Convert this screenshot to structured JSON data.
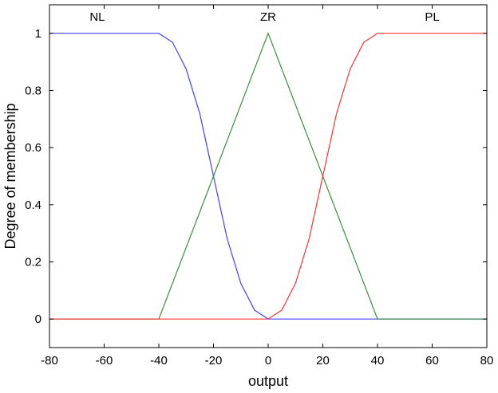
{
  "chart_data": {
    "type": "line",
    "title": "",
    "xlabel": "output",
    "ylabel": "Degree of membership",
    "xlim": [
      -80,
      80
    ],
    "ylim": [
      -0.1,
      1.1
    ],
    "x_ticks": [
      -80,
      -60,
      -40,
      -20,
      0,
      20,
      40,
      60,
      80
    ],
    "x_tick_labels": [
      "-80",
      "-60",
      "-40",
      "-20",
      "0",
      "20",
      "40",
      "60",
      "80"
    ],
    "y_ticks": [
      0,
      0.2,
      0.4,
      0.6,
      0.8,
      1
    ],
    "y_tick_labels": [
      "0",
      "0.2",
      "0.4",
      "0.6",
      "0.8",
      "1"
    ],
    "grid": false,
    "legend": "none",
    "series": [
      {
        "name": "NL",
        "color": "#4040ff",
        "x": [
          -80,
          -40,
          -35,
          -30,
          -25,
          -20,
          -15,
          -10,
          -5,
          0,
          80
        ],
        "y": [
          1,
          1,
          0.96875,
          0.875,
          0.71875,
          0.5,
          0.28125,
          0.125,
          0.03125,
          0,
          0
        ]
      },
      {
        "name": "ZR",
        "color": "#3a8f3a",
        "x": [
          -80,
          -40,
          0,
          40,
          80
        ],
        "y": [
          0,
          0,
          1,
          0,
          0
        ]
      },
      {
        "name": "PL",
        "color": "#ff3030",
        "x": [
          -80,
          0,
          5,
          10,
          15,
          20,
          25,
          30,
          35,
          40,
          80
        ],
        "y": [
          0,
          0,
          0.03125,
          0.125,
          0.28125,
          0.5,
          0.71875,
          0.875,
          0.96875,
          1,
          1
        ]
      }
    ],
    "annotations": [
      {
        "text": "NL",
        "x": -62.5,
        "y": 1.05
      },
      {
        "text": "ZR",
        "x": 0,
        "y": 1.05
      },
      {
        "text": "PL",
        "x": 60,
        "y": 1.05
      }
    ]
  }
}
